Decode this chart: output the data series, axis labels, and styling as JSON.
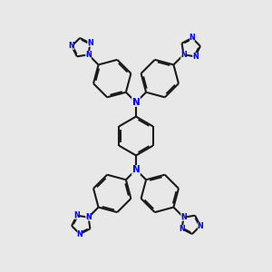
{
  "bg_color": "#e8e8e8",
  "bond_color": "#1a1a1a",
  "N_color": "#0000ff",
  "bond_width": 1.5,
  "figsize": [
    3.0,
    3.0
  ],
  "dpi": 100,
  "xlim": [
    -5.0,
    5.0
  ],
  "ylim": [
    -5.2,
    5.2
  ]
}
